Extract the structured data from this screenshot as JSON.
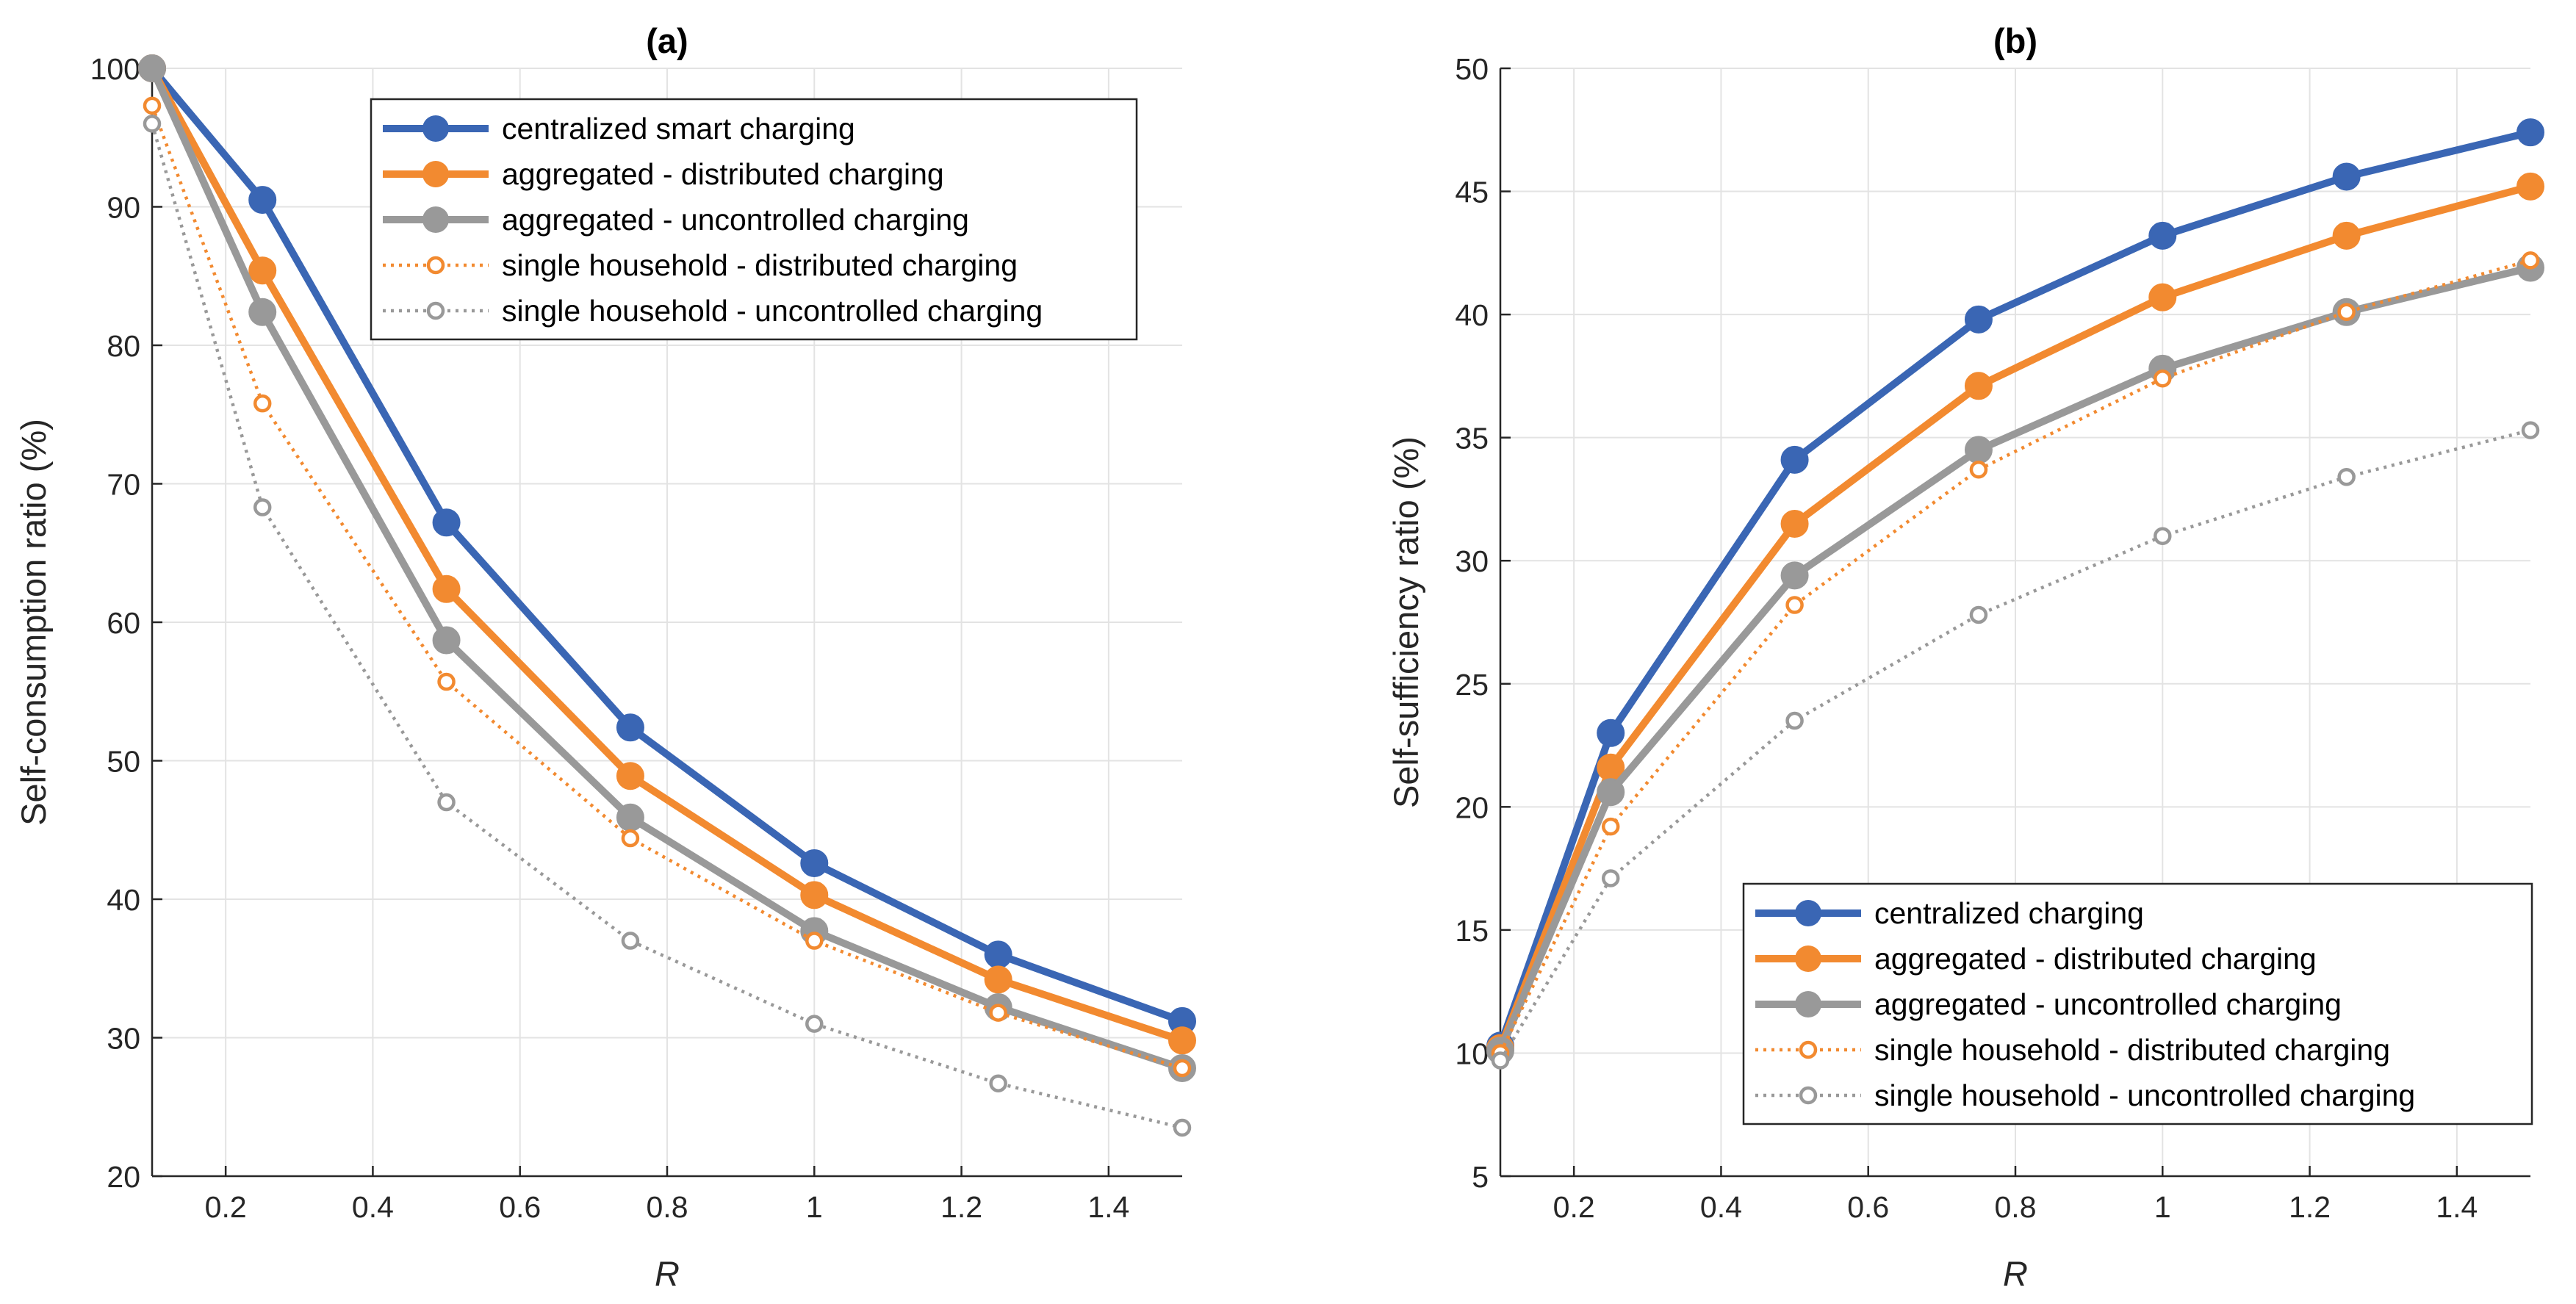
{
  "chart_data": [
    {
      "type": "line",
      "title": "(a)",
      "xlabel": "R",
      "ylabel": "Self-consumption ratio (%)",
      "xlim": [
        0.1,
        1.5
      ],
      "ylim": [
        20,
        100
      ],
      "xticks": [
        0.2,
        0.4,
        0.6,
        0.8,
        1,
        1.2,
        1.4
      ],
      "xtick_labels": [
        "0.2",
        "0.4",
        "0.6",
        "0.8",
        "1",
        "1.2",
        "1.4"
      ],
      "yticks": [
        20,
        30,
        40,
        50,
        60,
        70,
        80,
        90,
        100
      ],
      "ytick_labels": [
        "20",
        "30",
        "40",
        "50",
        "60",
        "70",
        "80",
        "90",
        "100"
      ],
      "grid": true,
      "legend_position": "top-right",
      "x": [
        0.1,
        0.25,
        0.5,
        0.75,
        1.0,
        1.25,
        1.5
      ],
      "series": [
        {
          "name": "centralized smart charging",
          "style": "solid",
          "marker": "filled",
          "color": "#3a66b4",
          "values": [
            100,
            90.5,
            67.2,
            52.4,
            42.6,
            36.0,
            31.2
          ]
        },
        {
          "name": "aggregated - distributed charging",
          "style": "solid",
          "marker": "filled",
          "color": "#f28a30",
          "values": [
            100,
            85.4,
            62.4,
            48.9,
            40.3,
            34.2,
            29.8
          ]
        },
        {
          "name": "aggregated - uncontrolled charging",
          "style": "solid",
          "marker": "filled",
          "color": "#999999",
          "values": [
            100,
            82.4,
            58.7,
            45.9,
            37.7,
            32.2,
            27.8
          ]
        },
        {
          "name": "single household - distributed charging",
          "style": "dotted",
          "marker": "open",
          "color": "#f28a30",
          "values": [
            97.3,
            75.8,
            55.7,
            44.4,
            37.0,
            31.8,
            27.8
          ]
        },
        {
          "name": "single household - uncontrolled charging",
          "style": "dotted",
          "marker": "open",
          "color": "#999999",
          "values": [
            96.0,
            68.3,
            47.0,
            37.0,
            31.0,
            26.7,
            23.5
          ]
        }
      ]
    },
    {
      "type": "line",
      "title": "(b)",
      "xlabel": "R",
      "ylabel": "Self-sufficiency ratio (%)",
      "xlim": [
        0.1,
        1.5
      ],
      "ylim": [
        5,
        50
      ],
      "xticks": [
        0.2,
        0.4,
        0.6,
        0.8,
        1,
        1.2,
        1.4
      ],
      "xtick_labels": [
        "0.2",
        "0.4",
        "0.6",
        "0.8",
        "1",
        "1.2",
        "1.4"
      ],
      "yticks": [
        5,
        10,
        15,
        20,
        25,
        30,
        35,
        40,
        45,
        50
      ],
      "ytick_labels": [
        "5",
        "10",
        "15",
        "20",
        "25",
        "30",
        "35",
        "40",
        "45",
        "50"
      ],
      "grid": true,
      "legend_position": "bottom-right",
      "x": [
        0.1,
        0.25,
        0.5,
        0.75,
        1.0,
        1.25,
        1.5
      ],
      "series": [
        {
          "name": "centralized charging",
          "style": "solid",
          "marker": "filled",
          "color": "#3a66b4",
          "values": [
            10.3,
            23.0,
            34.1,
            39.8,
            43.2,
            45.6,
            47.4
          ]
        },
        {
          "name": "aggregated - distributed charging",
          "style": "solid",
          "marker": "filled",
          "color": "#f28a30",
          "values": [
            10.2,
            21.6,
            31.5,
            37.1,
            40.7,
            43.2,
            45.2
          ]
        },
        {
          "name": "aggregated - uncontrolled charging",
          "style": "solid",
          "marker": "filled",
          "color": "#999999",
          "values": [
            10.1,
            20.6,
            29.4,
            34.5,
            37.8,
            40.1,
            41.9
          ]
        },
        {
          "name": "single household - distributed charging",
          "style": "dotted",
          "marker": "open",
          "color": "#f28a30",
          "values": [
            10.0,
            19.2,
            28.2,
            33.7,
            37.4,
            40.1,
            42.2
          ]
        },
        {
          "name": "single household - uncontrolled charging",
          "style": "dotted",
          "marker": "open",
          "color": "#999999",
          "values": [
            9.7,
            17.1,
            23.5,
            27.8,
            31.0,
            33.4,
            35.3
          ]
        }
      ]
    }
  ]
}
